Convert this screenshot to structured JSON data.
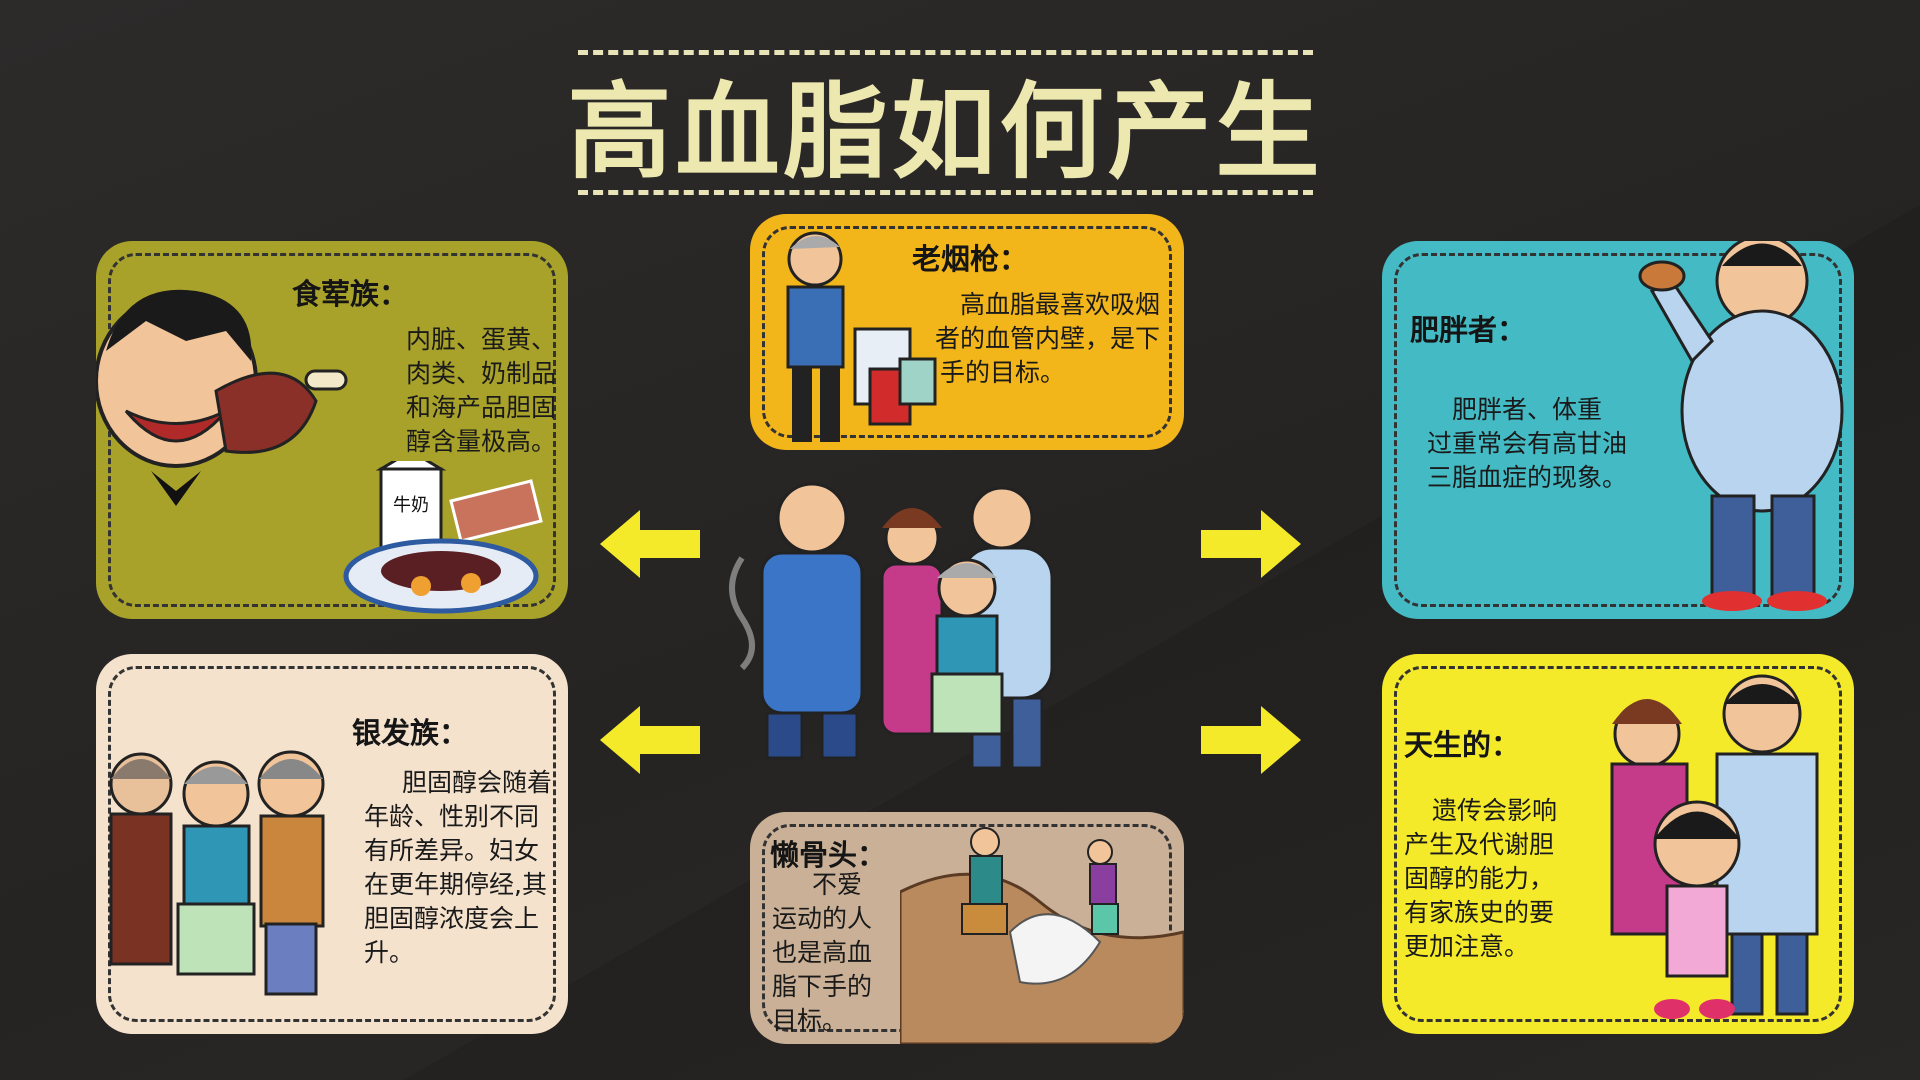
{
  "title": "高血脂如何产生",
  "cards": {
    "foodie": {
      "heading": "食荤族：",
      "lines": [
        "内脏、蛋黄、",
        "肉类、奶制品",
        "和海产品胆固",
        "醇含量极高。"
      ],
      "milk_label": "牛奶",
      "color": "#a8a12a"
    },
    "smoker": {
      "heading": "老烟枪：",
      "lines": [
        "高血脂最喜欢吸烟",
        "者的血管内壁，是下",
        "手的目标。"
      ],
      "color": "#f2b51a"
    },
    "obese": {
      "heading": "肥胖者：",
      "lines": [
        "肥胖者、体重",
        "过重常会有高甘油",
        "三脂血症的现象。"
      ],
      "color": "#44bac4"
    },
    "elder": {
      "heading": "银发族：",
      "lines": [
        "胆固醇会随着",
        "年龄、性别不同",
        "有所差异。妇女",
        "在更年期停经,其",
        "胆固醇浓度会上",
        "升。"
      ],
      "color": "#f4e2cd"
    },
    "lazy": {
      "heading": "懒骨头：",
      "lines": [
        "不爱",
        "运动的人",
        "也是高血",
        "脂下手的",
        "目标。"
      ],
      "color": "#c9b097"
    },
    "born": {
      "heading": "天生的：",
      "lines": [
        "遗传会影响",
        "产生及代谢胆",
        "固醇的能力，",
        "有家族史的要",
        "更加注意。"
      ],
      "color": "#f5ea2a"
    }
  },
  "arrow_color": "#f5ea2a",
  "icons": [
    "meat-eater-illustration",
    "smoker-illustration",
    "obese-man-illustration",
    "elderly-group-illustration",
    "hikers-illustration",
    "family-illustration",
    "central-group-illustration",
    "arrow-left-icon",
    "arrow-right-icon"
  ]
}
